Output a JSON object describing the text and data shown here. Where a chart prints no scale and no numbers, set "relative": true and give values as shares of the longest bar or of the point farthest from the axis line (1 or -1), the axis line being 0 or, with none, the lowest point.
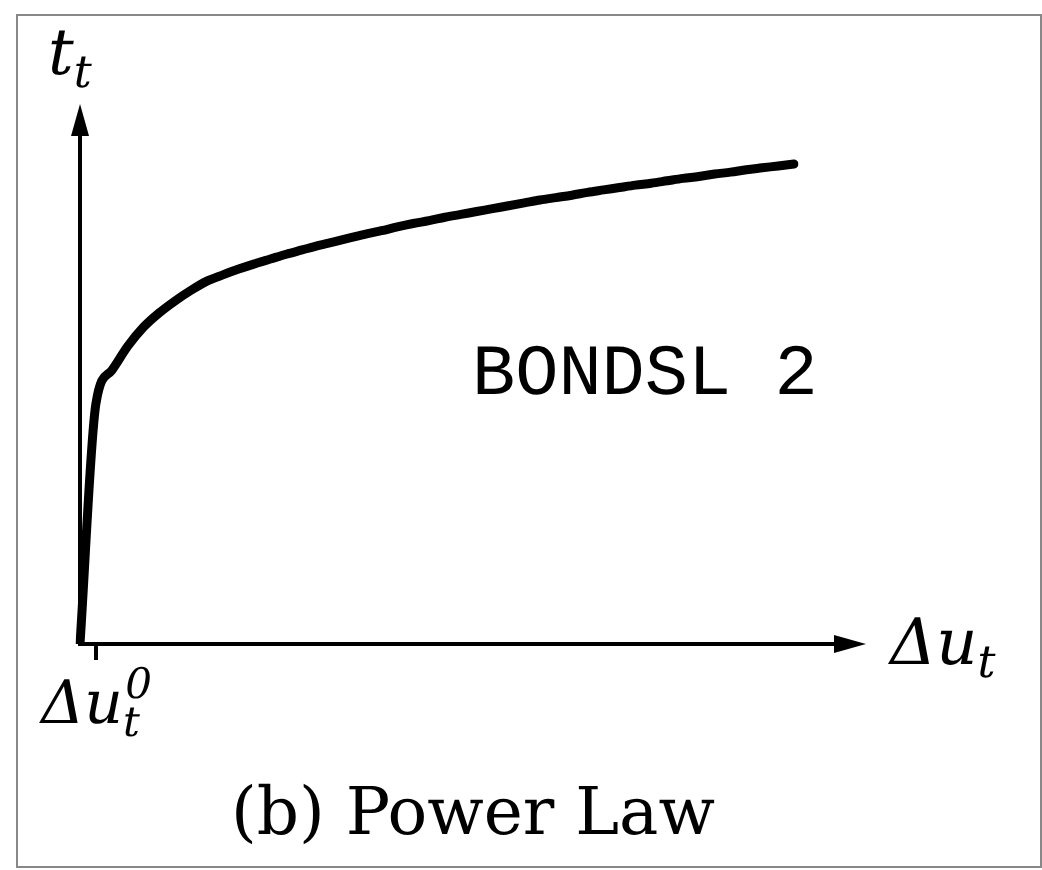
{
  "chart_data": {
    "type": "line",
    "title": "(b) Power Law",
    "xlabel": "Δu$_{t}$",
    "ylabel": "t$_{t}$",
    "relative": true,
    "categories": [
      null,
      null,
      null,
      null,
      null,
      null,
      null,
      null,
      null,
      null,
      null,
      null,
      null,
      null,
      null,
      null,
      null,
      null,
      null,
      null,
      null,
      null,
      null,
      null,
      null,
      null,
      null,
      null,
      null,
      null,
      null,
      null,
      null,
      null,
      null,
      null,
      null,
      null,
      null,
      null,
      null,
      null,
      null,
      null,
      null,
      null
    ],
    "values": [
      0,
      0.5,
      0.57,
      0.62,
      0.66,
      0.69,
      0.715,
      0.737,
      0.756,
      0.769,
      0.781,
      0.792,
      0.802,
      0.812,
      0.821,
      0.83,
      0.838,
      0.846,
      0.854,
      0.861,
      0.869,
      0.876,
      0.882,
      0.889,
      0.895,
      0.901,
      0.907,
      0.913,
      0.919,
      0.925,
      0.93,
      0.935,
      0.941,
      0.946,
      0.951,
      0.956,
      0.96,
      0.965,
      0.97,
      0.974,
      0.979,
      0.983,
      0.988,
      0.992,
      0.996,
      1
    ],
    "color": "#000000",
    "marker": "none",
    "line_style": "solid",
    "annotations": [
      "Δu$_{t}$$^{0}$",
      "BONDSL 2"
    ]
  }
}
